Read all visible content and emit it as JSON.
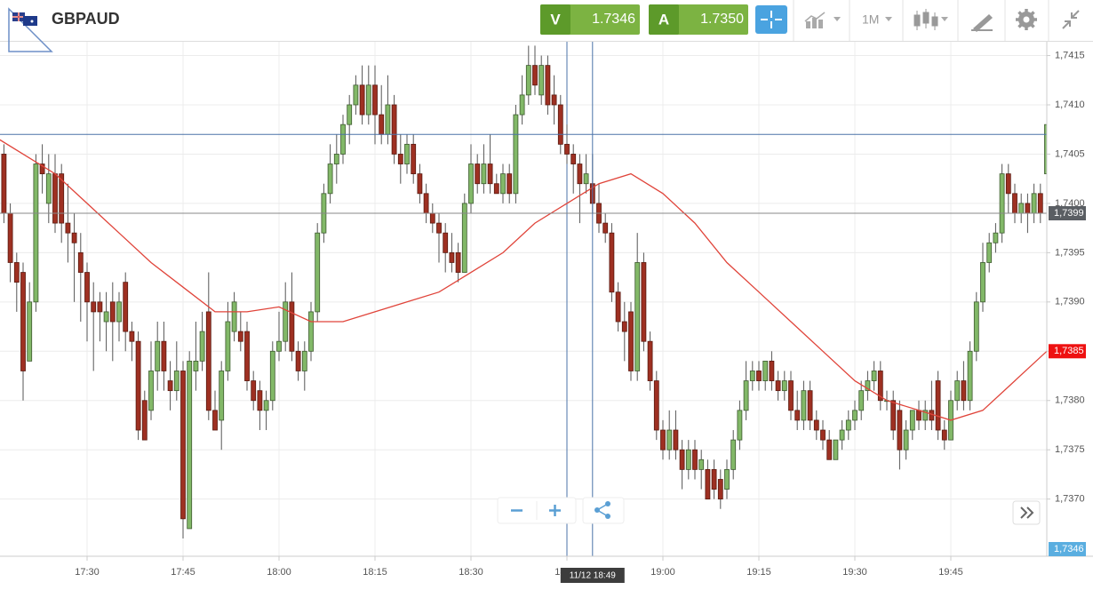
{
  "header": {
    "symbol": "GBPAUD",
    "sell_label": "V",
    "sell_price": "1.7346",
    "buy_label": "A",
    "buy_price": "1.7350",
    "timeframe": "1M"
  },
  "chart_data": {
    "type": "candlestick",
    "up_color": "#82b868",
    "down_color": "#9e3022",
    "xlim": [
      "17:16",
      "20:00"
    ],
    "xticks": [
      "17:30",
      "17:45",
      "18:00",
      "18:15",
      "18:30",
      "18:45",
      "19:00",
      "19:15",
      "19:30",
      "19:45"
    ],
    "ylim": [
      1.73642,
      1.74164
    ],
    "yticks": [
      {
        "value": 1.737,
        "label": "1,7370"
      },
      {
        "value": 1.7375,
        "label": "1,7375"
      },
      {
        "value": 1.738,
        "label": "1,7380"
      },
      {
        "value": 1.7385,
        "label": "1,7385"
      },
      {
        "value": 1.739,
        "label": "1,7390"
      },
      {
        "value": 1.7395,
        "label": "1,7395"
      },
      {
        "value": 1.74,
        "label": "1,7400"
      },
      {
        "value": 1.7405,
        "label": "1,7405"
      },
      {
        "value": 1.741,
        "label": "1,7410"
      },
      {
        "value": 1.7415,
        "label": "1,7415"
      }
    ],
    "grid": true,
    "candles": [
      [
        "17:17",
        1.7405,
        1.7406,
        1.7398,
        1.7399
      ],
      [
        "17:18",
        1.7399,
        1.74,
        1.7392,
        1.7394
      ],
      [
        "17:19",
        1.7394,
        1.7395,
        1.7389,
        1.7392
      ],
      [
        "17:20",
        1.7393,
        1.7394,
        1.738,
        1.7383
      ],
      [
        "17:21",
        1.7384,
        1.7392,
        1.7384,
        1.739
      ],
      [
        "17:22",
        1.739,
        1.7405,
        1.7389,
        1.7404
      ],
      [
        "17:23",
        1.7404,
        1.7406,
        1.7401,
        1.7403
      ],
      [
        "17:24",
        1.74,
        1.7405,
        1.7398,
        1.7403
      ],
      [
        "17:25",
        1.7403,
        1.7405,
        1.7397,
        1.7398
      ],
      [
        "17:26",
        1.7403,
        1.7404,
        1.7396,
        1.7398
      ],
      [
        "17:27",
        1.7398,
        1.7402,
        1.7394,
        1.7397
      ],
      [
        "17:28",
        1.7397,
        1.7399,
        1.739,
        1.7396
      ],
      [
        "17:29",
        1.7395,
        1.7397,
        1.7388,
        1.7393
      ],
      [
        "17:30",
        1.7393,
        1.7394,
        1.7386,
        1.739
      ],
      [
        "17:31",
        1.739,
        1.7392,
        1.7383,
        1.7389
      ],
      [
        "17:32",
        1.739,
        1.7391,
        1.7386,
        1.7389
      ],
      [
        "17:33",
        1.7388,
        1.7391,
        1.7385,
        1.7389
      ],
      [
        "17:34",
        1.739,
        1.7392,
        1.7384,
        1.7388
      ],
      [
        "17:35",
        1.7388,
        1.7391,
        1.7386,
        1.739
      ],
      [
        "17:36",
        1.7392,
        1.7393,
        1.7385,
        1.7387
      ],
      [
        "17:37",
        1.7387,
        1.7388,
        1.7384,
        1.7386
      ],
      [
        "17:38",
        1.7386,
        1.7387,
        1.7376,
        1.7377
      ],
      [
        "17:39",
        1.738,
        1.7381,
        1.7376,
        1.7376
      ],
      [
        "17:40",
        1.7379,
        1.7386,
        1.7378,
        1.7383
      ],
      [
        "17:41",
        1.7383,
        1.7388,
        1.7381,
        1.7386
      ],
      [
        "17:42",
        1.7386,
        1.7388,
        1.7381,
        1.7383
      ],
      [
        "17:43",
        1.7382,
        1.7384,
        1.7379,
        1.7381
      ],
      [
        "17:44",
        1.7381,
        1.7386,
        1.738,
        1.7383
      ],
      [
        "17:45",
        1.7383,
        1.7384,
        1.7366,
        1.7368
      ],
      [
        "17:46",
        1.7367,
        1.7385,
        1.7367,
        1.7384
      ],
      [
        "17:47",
        1.7383,
        1.7388,
        1.7381,
        1.7384
      ],
      [
        "17:48",
        1.7384,
        1.7389,
        1.7383,
        1.7387
      ],
      [
        "17:49",
        1.7389,
        1.7393,
        1.7378,
        1.7379
      ],
      [
        "17:50",
        1.7379,
        1.7381,
        1.7377,
        1.7377
      ],
      [
        "17:51",
        1.7378,
        1.7384,
        1.7375,
        1.7383
      ],
      [
        "17:52",
        1.7383,
        1.739,
        1.7382,
        1.7388
      ],
      [
        "17:53",
        1.7387,
        1.7391,
        1.7386,
        1.739
      ],
      [
        "17:54",
        1.7387,
        1.7389,
        1.7385,
        1.7386
      ],
      [
        "17:55",
        1.7387,
        1.7388,
        1.7381,
        1.7382
      ],
      [
        "17:56",
        1.7382,
        1.7383,
        1.7379,
        1.738
      ],
      [
        "17:57",
        1.7381,
        1.7382,
        1.7377,
        1.7379
      ],
      [
        "17:58",
        1.7379,
        1.7381,
        1.7377,
        1.738
      ],
      [
        "17:59",
        1.738,
        1.7386,
        1.7379,
        1.7385
      ],
      [
        "18:00",
        1.7385,
        1.7389,
        1.7384,
        1.7386
      ],
      [
        "18:01",
        1.7386,
        1.7392,
        1.7385,
        1.739
      ],
      [
        "18:02",
        1.739,
        1.7393,
        1.7384,
        1.7385
      ],
      [
        "18:03",
        1.7385,
        1.7386,
        1.7382,
        1.7383
      ],
      [
        "18:04",
        1.7383,
        1.7386,
        1.7381,
        1.7385
      ],
      [
        "18:05",
        1.7385,
        1.739,
        1.7384,
        1.7389
      ],
      [
        "18:06",
        1.7389,
        1.7398,
        1.7388,
        1.7397
      ],
      [
        "18:07",
        1.7397,
        1.7402,
        1.7396,
        1.7401
      ],
      [
        "18:08",
        1.7401,
        1.7406,
        1.74,
        1.7404
      ],
      [
        "18:09",
        1.7404,
        1.7407,
        1.7402,
        1.7405
      ],
      [
        "18:10",
        1.7405,
        1.7409,
        1.7404,
        1.7408
      ],
      [
        "18:11",
        1.7408,
        1.7411,
        1.7406,
        1.741
      ],
      [
        "18:12",
        1.741,
        1.7413,
        1.7409,
        1.7412
      ],
      [
        "18:13",
        1.7412,
        1.7414,
        1.7408,
        1.7409
      ],
      [
        "18:14",
        1.7409,
        1.7414,
        1.7408,
        1.7412
      ],
      [
        "18:15",
        1.7412,
        1.7414,
        1.7406,
        1.7409
      ],
      [
        "18:16",
        1.7409,
        1.7412,
        1.7406,
        1.7407
      ],
      [
        "18:17",
        1.7407,
        1.7413,
        1.7406,
        1.741
      ],
      [
        "18:18",
        1.741,
        1.7411,
        1.7404,
        1.7405
      ],
      [
        "18:19",
        1.7405,
        1.7407,
        1.7402,
        1.7404
      ],
      [
        "18:20",
        1.7404,
        1.7407,
        1.7403,
        1.7406
      ],
      [
        "18:21",
        1.7406,
        1.7407,
        1.7402,
        1.7403
      ],
      [
        "18:22",
        1.7403,
        1.7404,
        1.74,
        1.7401
      ],
      [
        "18:23",
        1.7401,
        1.7402,
        1.7398,
        1.7399
      ],
      [
        "18:24",
        1.7399,
        1.74,
        1.7397,
        1.7398
      ],
      [
        "18:25",
        1.7398,
        1.7399,
        1.7394,
        1.7397
      ],
      [
        "18:26",
        1.7397,
        1.7398,
        1.7393,
        1.7395
      ],
      [
        "18:27",
        1.7395,
        1.7397,
        1.7393,
        1.7394
      ],
      [
        "18:28",
        1.7395,
        1.7396,
        1.7392,
        1.7393
      ],
      [
        "18:29",
        1.7393,
        1.7401,
        1.7393,
        1.74
      ],
      [
        "18:30",
        1.74,
        1.7406,
        1.7399,
        1.7404
      ],
      [
        "18:31",
        1.7404,
        1.7405,
        1.7401,
        1.7402
      ],
      [
        "18:32",
        1.7402,
        1.7406,
        1.7401,
        1.7404
      ],
      [
        "18:33",
        1.7404,
        1.7407,
        1.7401,
        1.7402
      ],
      [
        "18:34",
        1.7402,
        1.7403,
        1.7401,
        1.7401
      ],
      [
        "18:35",
        1.7401,
        1.7404,
        1.74,
        1.7403
      ],
      [
        "18:36",
        1.7403,
        1.7404,
        1.74,
        1.7401
      ],
      [
        "18:37",
        1.7401,
        1.741,
        1.74,
        1.7409
      ],
      [
        "18:38",
        1.7409,
        1.7413,
        1.7408,
        1.7411
      ],
      [
        "18:39",
        1.7411,
        1.7416,
        1.741,
        1.7414
      ],
      [
        "18:40",
        1.7414,
        1.7416,
        1.7411,
        1.7412
      ],
      [
        "18:41",
        1.7411,
        1.7415,
        1.741,
        1.7414
      ],
      [
        "18:42",
        1.7414,
        1.7415,
        1.7409,
        1.741
      ],
      [
        "18:43",
        1.7411,
        1.7413,
        1.7408,
        1.741
      ],
      [
        "18:44",
        1.741,
        1.7411,
        1.7405,
        1.7406
      ],
      [
        "18:45",
        1.7406,
        1.7408,
        1.7404,
        1.7405
      ],
      [
        "18:46",
        1.7405,
        1.7406,
        1.7401,
        1.7404
      ],
      [
        "18:47",
        1.7404,
        1.7405,
        1.7398,
        1.7402
      ],
      [
        "18:48",
        1.7402,
        1.7405,
        1.7401,
        1.7403
      ],
      [
        "18:49",
        1.7402,
        1.7405,
        1.7399,
        1.74
      ],
      [
        "18:50",
        1.74,
        1.7402,
        1.7397,
        1.7398
      ],
      [
        "18:51",
        1.7398,
        1.7399,
        1.7396,
        1.7397
      ],
      [
        "18:52",
        1.7397,
        1.7398,
        1.739,
        1.7391
      ],
      [
        "18:53",
        1.7391,
        1.7392,
        1.7387,
        1.7388
      ],
      [
        "18:54",
        1.7388,
        1.739,
        1.7384,
        1.7387
      ],
      [
        "18:55",
        1.7389,
        1.739,
        1.7382,
        1.7383
      ],
      [
        "18:56",
        1.7383,
        1.7397,
        1.7382,
        1.7394
      ],
      [
        "18:57",
        1.7394,
        1.7395,
        1.7385,
        1.7386
      ],
      [
        "18:58",
        1.7386,
        1.7387,
        1.7381,
        1.7382
      ],
      [
        "18:59",
        1.7382,
        1.7383,
        1.7376,
        1.7377
      ],
      [
        "19:00",
        1.7377,
        1.7378,
        1.7374,
        1.7375
      ],
      [
        "19:01",
        1.7375,
        1.7379,
        1.7374,
        1.7377
      ],
      [
        "19:02",
        1.7377,
        1.7379,
        1.7374,
        1.7375
      ],
      [
        "19:03",
        1.7375,
        1.7376,
        1.7371,
        1.7373
      ],
      [
        "19:04",
        1.7373,
        1.7376,
        1.7372,
        1.7375
      ],
      [
        "19:05",
        1.7375,
        1.7376,
        1.7372,
        1.7373
      ],
      [
        "19:06",
        1.7373,
        1.7375,
        1.7371,
        1.7374
      ],
      [
        "19:07",
        1.7373,
        1.7374,
        1.737,
        1.737
      ],
      [
        "19:08",
        1.7373,
        1.7374,
        1.737,
        1.7371
      ],
      [
        "19:09",
        1.7372,
        1.7373,
        1.7369,
        1.737
      ],
      [
        "19:10",
        1.7371,
        1.7374,
        1.737,
        1.7373
      ],
      [
        "19:11",
        1.7373,
        1.7377,
        1.7372,
        1.7376
      ],
      [
        "19:12",
        1.7376,
        1.738,
        1.7375,
        1.7379
      ],
      [
        "19:13",
        1.7379,
        1.7384,
        1.7378,
        1.7382
      ],
      [
        "19:14",
        1.7382,
        1.7384,
        1.7381,
        1.7383
      ],
      [
        "19:15",
        1.7383,
        1.7384,
        1.7381,
        1.7382
      ],
      [
        "19:16",
        1.7382,
        1.7384,
        1.7381,
        1.7384
      ],
      [
        "19:17",
        1.7384,
        1.7385,
        1.7381,
        1.7382
      ],
      [
        "19:18",
        1.7382,
        1.7383,
        1.738,
        1.7381
      ],
      [
        "19:19",
        1.7381,
        1.7383,
        1.738,
        1.7382
      ],
      [
        "19:20",
        1.7382,
        1.7383,
        1.7378,
        1.7379
      ],
      [
        "19:21",
        1.7379,
        1.7381,
        1.7377,
        1.7378
      ],
      [
        "19:22",
        1.7378,
        1.7382,
        1.7377,
        1.7381
      ],
      [
        "19:23",
        1.7381,
        1.7382,
        1.7377,
        1.7378
      ],
      [
        "19:24",
        1.7378,
        1.7379,
        1.7376,
        1.7377
      ],
      [
        "19:25",
        1.7377,
        1.7378,
        1.7375,
        1.7376
      ],
      [
        "19:26",
        1.7376,
        1.7377,
        1.7374,
        1.7374
      ],
      [
        "19:27",
        1.7374,
        1.7376,
        1.7374,
        1.7376
      ],
      [
        "19:28",
        1.7376,
        1.7378,
        1.7375,
        1.7377
      ],
      [
        "19:29",
        1.7377,
        1.7379,
        1.7376,
        1.7378
      ],
      [
        "19:30",
        1.7378,
        1.738,
        1.7377,
        1.7379
      ],
      [
        "19:31",
        1.7379,
        1.7382,
        1.7378,
        1.7381
      ],
      [
        "19:32",
        1.7381,
        1.7383,
        1.738,
        1.7382
      ],
      [
        "19:33",
        1.7382,
        1.7384,
        1.7381,
        1.7383
      ],
      [
        "19:34",
        1.7383,
        1.7384,
        1.7379,
        1.738
      ],
      [
        "19:35",
        1.738,
        1.7381,
        1.7379,
        1.738
      ],
      [
        "19:36",
        1.738,
        1.7381,
        1.7376,
        1.7377
      ],
      [
        "19:37",
        1.7379,
        1.738,
        1.7373,
        1.7375
      ],
      [
        "19:38",
        1.7375,
        1.7378,
        1.7374,
        1.7377
      ],
      [
        "19:39",
        1.7377,
        1.7379,
        1.7376,
        1.7379
      ],
      [
        "19:40",
        1.7379,
        1.738,
        1.7377,
        1.7378
      ],
      [
        "19:41",
        1.7378,
        1.738,
        1.7377,
        1.7379
      ],
      [
        "19:42",
        1.7379,
        1.7382,
        1.7377,
        1.7378
      ],
      [
        "19:43",
        1.7382,
        1.7383,
        1.7376,
        1.7377
      ],
      [
        "19:44",
        1.7377,
        1.7378,
        1.7375,
        1.7376
      ],
      [
        "19:45",
        1.7376,
        1.7381,
        1.7376,
        1.738
      ],
      [
        "19:46",
        1.738,
        1.7383,
        1.7379,
        1.7382
      ],
      [
        "19:47",
        1.7382,
        1.7384,
        1.7379,
        1.738
      ],
      [
        "19:48",
        1.738,
        1.7386,
        1.7379,
        1.7385
      ],
      [
        "19:49",
        1.7385,
        1.7391,
        1.7384,
        1.739
      ],
      [
        "19:50",
        1.739,
        1.7396,
        1.7389,
        1.7394
      ],
      [
        "19:51",
        1.7394,
        1.7397,
        1.7393,
        1.7396
      ],
      [
        "19:52",
        1.7396,
        1.7398,
        1.7395,
        1.7397
      ],
      [
        "19:53",
        1.7397,
        1.7404,
        1.7396,
        1.7403
      ],
      [
        "19:54",
        1.7403,
        1.7404,
        1.7399,
        1.7401
      ],
      [
        "19:55",
        1.7401,
        1.7402,
        1.7398,
        1.7399
      ],
      [
        "19:56",
        1.7399,
        1.7401,
        1.7398,
        1.74
      ],
      [
        "19:57",
        1.74,
        1.7401,
        1.7397,
        1.7399
      ],
      [
        "19:58",
        1.7399,
        1.7402,
        1.7398,
        1.7401
      ],
      [
        "19:59",
        1.7401,
        1.7402,
        1.7398,
        1.7399
      ],
      [
        "20:00",
        1.7403,
        1.7408,
        1.7402,
        1.7408
      ]
    ],
    "moving_average": {
      "color": "#e0443a",
      "x": [
        "17:15",
        "17:20",
        "17:25",
        "17:30",
        "17:35",
        "17:40",
        "17:45",
        "17:50",
        "17:55",
        "18:00",
        "18:05",
        "18:10",
        "18:15",
        "18:20",
        "18:25",
        "18:30",
        "18:35",
        "18:40",
        "18:45",
        "18:50",
        "18:55",
        "19:00",
        "19:05",
        "19:10",
        "19:15",
        "19:20",
        "19:25",
        "19:30",
        "19:35",
        "19:40",
        "19:45",
        "19:50",
        "19:55",
        "20:00"
      ],
      "values": [
        1.7407,
        1.7405,
        1.7403,
        1.74,
        1.7397,
        1.7394,
        1.73915,
        1.7389,
        1.7389,
        1.73895,
        1.7388,
        1.7388,
        1.7389,
        1.739,
        1.7391,
        1.7393,
        1.7395,
        1.7398,
        1.74,
        1.7402,
        1.7403,
        1.7401,
        1.7398,
        1.7394,
        1.7391,
        1.7388,
        1.7385,
        1.7382,
        1.738,
        1.7379,
        1.7378,
        1.7379,
        1.7382,
        1.7385
      ]
    },
    "price_markers": [
      {
        "value": 1.7399,
        "label": "1,7399",
        "color": "#5a5e63",
        "line": true
      },
      {
        "value": 1.7385,
        "label": "1,7385",
        "color": "#ee1111",
        "line": false
      },
      {
        "value": 1.7346,
        "label": "1,7346",
        "color": "#5aaee0",
        "line": false
      }
    ],
    "crosshair": {
      "x": "18:49",
      "y": 1.7407,
      "label": "11/12 18:49"
    }
  }
}
